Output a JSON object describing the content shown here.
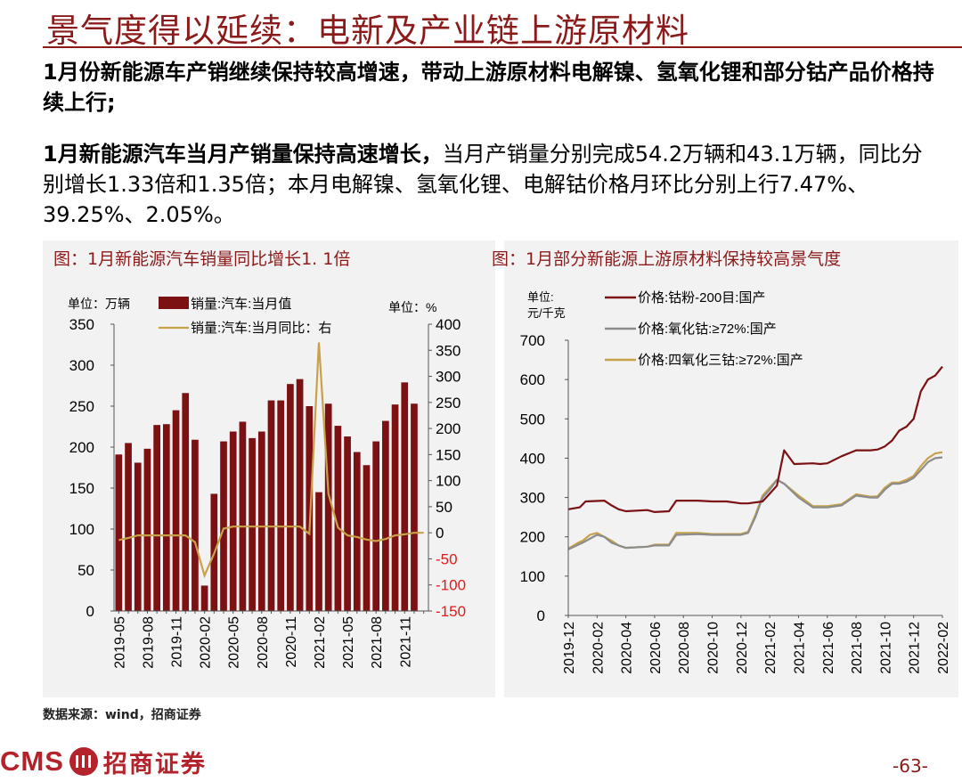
{
  "header": {
    "title": "景气度得以延续：电新及产业链上游原材料"
  },
  "body": {
    "p1": "1月份新能源车产销继续保持较高增速，带动上游原材料电解镍、氢氧化锂和部分钴产品价格持续上行;",
    "p2_bold": "1月新能源汽车当月产销量保持高速增长，",
    "p2_rest": "当月产销量分别完成54.2万辆和43.1万辆，同比分别增长1.33倍和1.35倍；本月电解镍、氢氧化锂、电解钴价格月环比分别上行7.47%、39.25%、2.05%。"
  },
  "left_chart": {
    "title": "图：1月新能源汽车销量同比增长1. 1倍",
    "unit_left": "单位：万辆",
    "unit_right": "单位：%",
    "legend_bar": "销量:汽车:当月值",
    "legend_line": "销量:汽车:当月同比：右",
    "colors": {
      "bar": "#7b1113",
      "line": "#c8a24a",
      "neg_axis": "#e01b1b"
    }
  },
  "right_chart": {
    "title": "图：1月部分新能源上游原材料保持较高景气度",
    "unit_line1": "单位:",
    "unit_line2": "元/千克",
    "colors": {
      "cobalt_powder": "#7b1113",
      "cobalt_oxide": "#8c8c8c",
      "tricobalt": "#c8a24a"
    }
  },
  "chart_data": [
    {
      "type": "bar",
      "title": "图：1月新能源汽车销量同比增长1. 1倍",
      "categories": [
        "2019-05",
        "2019-06",
        "2019-07",
        "2019-08",
        "2019-09",
        "2019-10",
        "2019-11",
        "2019-12",
        "2020-01",
        "2020-02",
        "2020-03",
        "2020-04",
        "2020-05",
        "2020-06",
        "2020-07",
        "2020-08",
        "2020-09",
        "2020-10",
        "2020-11",
        "2020-12",
        "2021-01",
        "2021-02",
        "2021-03",
        "2021-04",
        "2021-05",
        "2021-06",
        "2021-07",
        "2021-08",
        "2021-09",
        "2021-10",
        "2021-11",
        "2021-12",
        "2022-01"
      ],
      "xtick_labels": [
        "2019-05",
        "2019-08",
        "2019-11",
        "2020-02",
        "2020-05",
        "2020-08",
        "2020-11",
        "2021-02",
        "2021-05",
        "2021-08",
        "2021-11"
      ],
      "series": [
        {
          "name": "销量:汽车:当月值",
          "axis": "left",
          "type": "bar",
          "values": [
            191,
            205,
            181,
            198,
            227,
            228,
            245,
            266,
            209,
            31,
            143,
            207,
            219,
            231,
            211,
            219,
            257,
            257,
            277,
            283,
            250,
            145,
            253,
            226,
            213,
            194,
            178,
            207,
            232,
            252,
            279,
            253,
            0
          ]
        },
        {
          "name": "销量:汽车:当月同比：右",
          "axis": "right",
          "type": "line",
          "values": [
            -14,
            -10,
            -5,
            -5,
            -5,
            -5,
            -5,
            -5,
            -18,
            -82,
            -40,
            8,
            12,
            12,
            12,
            12,
            12,
            12,
            12,
            12,
            -2,
            365,
            75,
            10,
            -5,
            -8,
            -13,
            -16,
            -12,
            -5,
            -3,
            0,
            0
          ]
        }
      ],
      "ylim_left": [
        0,
        350
      ],
      "ylim_right": [
        -150,
        400
      ],
      "yticks_left": [
        0,
        50,
        100,
        150,
        200,
        250,
        300,
        350
      ],
      "yticks_right": [
        -150,
        -100,
        -50,
        0,
        50,
        100,
        150,
        200,
        250,
        300,
        350,
        400
      ]
    },
    {
      "type": "line",
      "title": "图：1月部分新能源上游原材料保持较高景气度",
      "xtick_labels": [
        "2019-12",
        "2020-02",
        "2020-04",
        "2020-06",
        "2020-08",
        "2020-10",
        "2020-12",
        "2021-02",
        "2021-04",
        "2021-06",
        "2021-08",
        "2021-10",
        "2021-12",
        "2022-02"
      ],
      "xlim": [
        0,
        26
      ],
      "ylim": [
        0,
        700
      ],
      "yticks": [
        0,
        100,
        200,
        300,
        400,
        500,
        600,
        700
      ],
      "series": [
        {
          "name": "价格:钴粉-200目:国产",
          "x": [
            0,
            0.8,
            1.2,
            2.5,
            3,
            3.5,
            4,
            5.5,
            6,
            7,
            7.5,
            9,
            10,
            11,
            12,
            12.5,
            13.5,
            14,
            14.5,
            15,
            15.7,
            17,
            17.5,
            18,
            19,
            20,
            20.5,
            21,
            21.5,
            22,
            22.5,
            23,
            23.5,
            24,
            24.5,
            25,
            25.5,
            26
          ],
          "y": [
            270,
            275,
            290,
            292,
            280,
            270,
            265,
            268,
            263,
            265,
            292,
            292,
            290,
            290,
            285,
            285,
            290,
            310,
            330,
            420,
            385,
            387,
            385,
            387,
            405,
            420,
            420,
            420,
            422,
            430,
            445,
            470,
            480,
            500,
            570,
            600,
            610,
            633
          ]
        },
        {
          "name": "价格:氧化钴:≥72%:国产",
          "x": [
            0,
            0.7,
            1,
            1.5,
            2,
            2.5,
            3,
            3.5,
            4,
            5.5,
            6,
            7,
            7.5,
            9,
            10,
            12,
            12.5,
            13,
            13.5,
            14,
            14.5,
            15,
            16,
            17,
            18,
            19,
            20,
            21,
            21.5,
            22,
            22.5,
            23,
            23.5,
            24,
            24.5,
            25,
            25.5,
            26
          ],
          "y": [
            168,
            180,
            185,
            195,
            205,
            200,
            185,
            178,
            172,
            175,
            178,
            178,
            205,
            207,
            205,
            205,
            210,
            250,
            300,
            320,
            345,
            335,
            300,
            275,
            275,
            280,
            305,
            300,
            300,
            320,
            335,
            335,
            340,
            350,
            370,
            390,
            400,
            402
          ]
        },
        {
          "name": "价格:四氧化三钴:≥72%:国产",
          "x": [
            0,
            0.7,
            1,
            1.5,
            2,
            2.5,
            3,
            3.5,
            4,
            5.5,
            6,
            7,
            7.5,
            9,
            10,
            12,
            12.5,
            13,
            13.5,
            14,
            14.5,
            15,
            16,
            17,
            18,
            19,
            20,
            21,
            21.5,
            22,
            22.5,
            23,
            23.5,
            24,
            24.5,
            25,
            25.5,
            26
          ],
          "y": [
            170,
            185,
            190,
            205,
            210,
            200,
            190,
            178,
            172,
            175,
            180,
            180,
            210,
            210,
            207,
            207,
            213,
            255,
            305,
            325,
            345,
            335,
            305,
            278,
            278,
            283,
            308,
            302,
            303,
            325,
            338,
            338,
            345,
            355,
            380,
            400,
            412,
            415
          ]
        }
      ]
    }
  ],
  "footer": {
    "source": "数据来源：wind，招商证券",
    "logo_en": "CMS",
    "logo_cn": "招商证券",
    "page": "-63-"
  }
}
